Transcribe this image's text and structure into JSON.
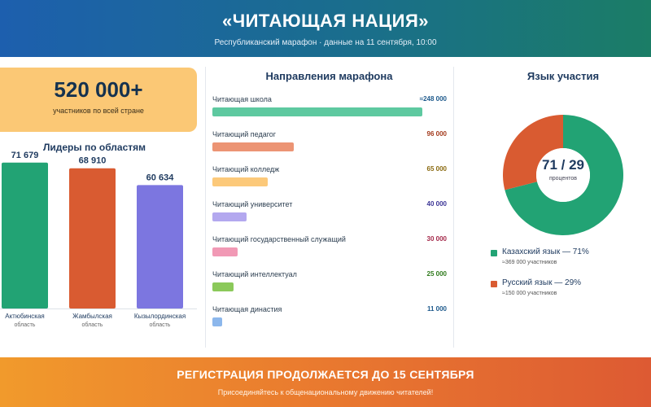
{
  "header": {
    "title": "«ЧИТАЮЩАЯ НАЦИЯ»",
    "subtitle": "Республиканский марафон · данные на 11 сентября, 10:00"
  },
  "total": {
    "value": "520 000+",
    "label": "участников по всей стране"
  },
  "footer": {
    "cta": "РЕГИСТРАЦИЯ ПРОДОЛЖАЕТСЯ ДО 15 СЕНТЯБРЯ",
    "sub": "Присоединяйтесь к общенациональному движению читателей!"
  },
  "chart_data": [
    {
      "type": "bar",
      "title": "Лидеры по областям",
      "categories": [
        "Актюбинская",
        "Жамбылская",
        "Кызылординская"
      ],
      "category_sub": [
        "область",
        "область",
        "область"
      ],
      "values": [
        71679,
        68910,
        60634
      ],
      "value_labels": [
        "71 679",
        "68 910",
        "60 634"
      ],
      "colors": [
        "#22a374",
        "#d95b31",
        "#7c76e0"
      ],
      "ylim": [
        0,
        72000
      ]
    },
    {
      "type": "bar",
      "orientation": "horizontal",
      "title": "Направления марафона",
      "categories": [
        "Читающая школа",
        "Читающий педагог",
        "Читающий колледж",
        "Читающий университет",
        "Читающий государственный служащий",
        "Читающий интеллектуал",
        "Читающая династия"
      ],
      "values": [
        248000,
        96000,
        65000,
        40000,
        30000,
        25000,
        11000
      ],
      "value_labels": [
        "≈248 000",
        "96 000",
        "65 000",
        "40 000",
        "30 000",
        "25 000",
        "11 000"
      ],
      "colors": [
        "#5ec9a0",
        "#ec9474",
        "#fcc97a",
        "#b3a8ef",
        "#f199b5",
        "#8bc95a",
        "#8cb7ec"
      ],
      "value_colors": [
        "#1e5a8c",
        "#a33b1d",
        "#8a6a10",
        "#3c3596",
        "#a4294a",
        "#2f7a1c",
        "#1e5a8c"
      ],
      "xlim": [
        0,
        250000
      ]
    },
    {
      "type": "pie",
      "title": "Язык участия",
      "center_value": "71 / 29",
      "center_label": "процентов",
      "slices": [
        {
          "label": "Казахский язык — 71%",
          "value": 71,
          "sub": "≈369 000 участников",
          "color": "#22a374"
        },
        {
          "label": "Русский язык — 29%",
          "value": 29,
          "sub": "≈150 000 участников",
          "color": "#d95b31"
        }
      ]
    }
  ]
}
